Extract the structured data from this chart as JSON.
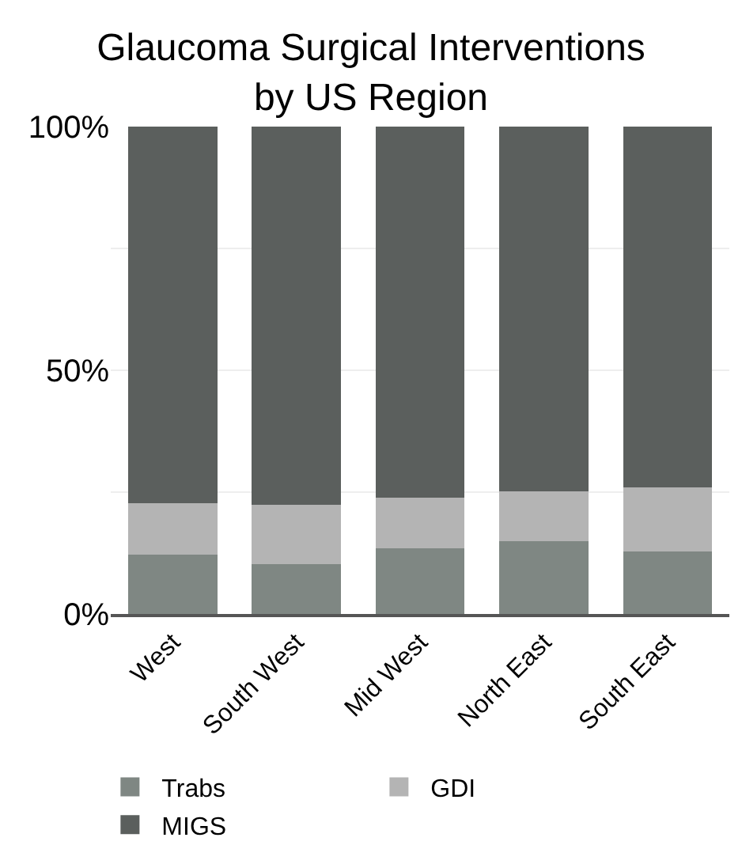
{
  "chart_data": {
    "type": "bar",
    "title": "Glaucoma Surgical Interventions by US Region",
    "categories": [
      "West",
      "South West",
      "Mid West",
      "North East",
      "South East"
    ],
    "stacked": true,
    "series": [
      {
        "name": "Trabs",
        "color": "#7f8783",
        "values": [
          12.1,
          10.2,
          13.4,
          15.0,
          12.8
        ]
      },
      {
        "name": "GDI",
        "color": "#b4b4b4",
        "values": [
          10.7,
          12.2,
          10.5,
          10.2,
          13.2
        ]
      },
      {
        "name": "MIGS",
        "color": "#5b5f5d",
        "values": [
          77.2,
          77.6,
          76.1,
          74.8,
          74.0
        ]
      }
    ],
    "ylim": [
      0,
      100
    ],
    "yticks": [
      {
        "value": 0,
        "label": "0%"
      },
      {
        "value": 25,
        "label": null
      },
      {
        "value": 50,
        "label": "50%"
      },
      {
        "value": 75,
        "label": null
      },
      {
        "value": 100,
        "label": "100%"
      }
    ],
    "grid": "y",
    "legend": "bottom"
  }
}
